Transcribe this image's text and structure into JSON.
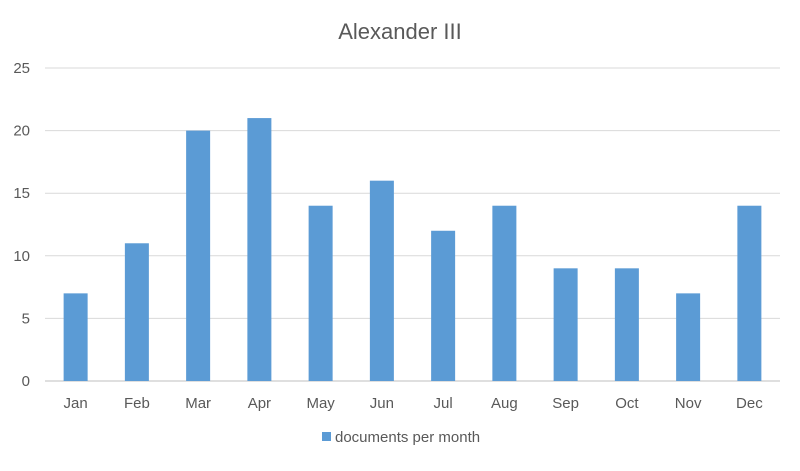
{
  "chart_data": {
    "type": "bar",
    "title": "Alexander III",
    "xlabel": "",
    "ylabel": "",
    "categories": [
      "Jan",
      "Feb",
      "Mar",
      "Apr",
      "May",
      "Jun",
      "Jul",
      "Aug",
      "Sep",
      "Oct",
      "Nov",
      "Dec"
    ],
    "series": [
      {
        "name": "documents per month",
        "values": [
          7,
          11,
          20,
          21,
          14,
          16,
          12,
          14,
          9,
          9,
          7,
          14
        ],
        "color": "#5b9bd5"
      }
    ],
    "ylim": [
      0,
      25
    ],
    "yticks": [
      0,
      5,
      10,
      15,
      20,
      25
    ],
    "grid": true,
    "legend_position": "bottom",
    "colors": {
      "text": "#595959",
      "title": "#595959",
      "gridline": "#d9d9d9",
      "axis": "#bfbfbf"
    }
  }
}
